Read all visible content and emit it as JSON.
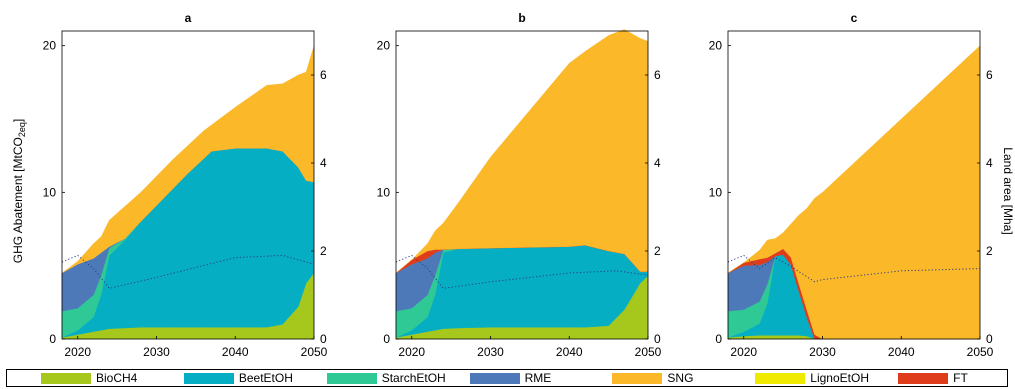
{
  "y_left_label": "GHG Abatement [MtCO",
  "y_left_sub": "2eq",
  "y_left_close": "]",
  "y_right_label": "Land area [Mha]",
  "colors": {
    "BioCH4": "#a6c81c",
    "BeetEtOH": "#05aec2",
    "StarchEtOH": "#2fc996",
    "RME": "#4e79b8",
    "SNG": "#fbb829",
    "LignoEtOH": "#f0ea00",
    "FT": "#de3c1a"
  },
  "legend": [
    {
      "key": "BioCH4",
      "label": "BioCH4"
    },
    {
      "key": "BeetEtOH",
      "label": "BeetEtOH"
    },
    {
      "key": "StarchEtOH",
      "label": "StarchEtOH"
    },
    {
      "key": "RME",
      "label": "RME"
    },
    {
      "key": "SNG",
      "label": "SNG"
    },
    {
      "key": "LignoEtOH",
      "label": "LignoEtOH"
    },
    {
      "key": "FT",
      "label": "FT"
    }
  ],
  "chart_data": [
    {
      "type": "area",
      "title": "a",
      "xlim": [
        2018,
        2050
      ],
      "ylim_left": [
        0,
        21
      ],
      "ylim_right": [
        0,
        7
      ],
      "xticks": [
        2020,
        2030,
        2040,
        2050
      ],
      "yticks_left": [
        0,
        10,
        20
      ],
      "yticks_right": [
        0,
        2,
        4,
        6
      ],
      "x": [
        2018,
        2020,
        2022,
        2023,
        2024,
        2026,
        2028,
        2030,
        2032,
        2034,
        2036,
        2037,
        2040,
        2044,
        2046,
        2048,
        2049,
        2050
      ],
      "series": [
        {
          "name": "BioCH4",
          "values": [
            0.1,
            0.3,
            0.5,
            0.6,
            0.7,
            0.75,
            0.8,
            0.8,
            0.8,
            0.8,
            0.8,
            0.8,
            0.8,
            0.8,
            1.0,
            2.2,
            3.8,
            4.5
          ]
        },
        {
          "name": "BeetEtOH",
          "values": [
            0.0,
            0.3,
            1.0,
            2.5,
            5.0,
            6.0,
            7.2,
            8.3,
            9.4,
            10.5,
            11.5,
            12.0,
            12.2,
            12.2,
            11.8,
            9.5,
            7.0,
            6.2
          ]
        },
        {
          "name": "StarchEtOH",
          "values": [
            1.8,
            1.5,
            1.5,
            1.3,
            0.5,
            0.1,
            0.0,
            0.0,
            0.0,
            0.0,
            0.0,
            0.0,
            0.0,
            0.0,
            0.0,
            0.0,
            0.0,
            0.0
          ]
        },
        {
          "name": "RME",
          "values": [
            2.6,
            3.0,
            2.5,
            1.5,
            0.1,
            0.0,
            0.0,
            0.0,
            0.0,
            0.0,
            0.0,
            0.0,
            0.0,
            0.0,
            0.0,
            0.0,
            0.0,
            0.0
          ]
        },
        {
          "name": "SNG",
          "values": [
            0.0,
            0.2,
            1.0,
            1.1,
            1.8,
            2.2,
            2.0,
            2.0,
            2.0,
            1.9,
            1.9,
            1.8,
            2.8,
            4.3,
            4.6,
            6.3,
            7.4,
            9.3
          ]
        }
      ],
      "land_area": {
        "x": [
          2018,
          2020,
          2022,
          2024,
          2030,
          2040,
          2046,
          2050
        ],
        "values": [
          1.75,
          1.9,
          1.6,
          1.15,
          1.4,
          1.85,
          1.9,
          1.7
        ]
      }
    },
    {
      "type": "area",
      "title": "b",
      "xlim": [
        2018,
        2050
      ],
      "ylim_left": [
        0,
        21
      ],
      "ylim_right": [
        0,
        7
      ],
      "xticks": [
        2020,
        2030,
        2040,
        2050
      ],
      "yticks_left": [
        0,
        10,
        20
      ],
      "yticks_right": [
        0,
        2,
        4,
        6
      ],
      "x": [
        2018,
        2020,
        2022,
        2023,
        2024,
        2026,
        2030,
        2040,
        2042,
        2045,
        2047,
        2049,
        2050
      ],
      "series": [
        {
          "name": "BioCH4",
          "values": [
            0.1,
            0.3,
            0.5,
            0.6,
            0.7,
            0.75,
            0.8,
            0.8,
            0.8,
            0.9,
            2.0,
            3.8,
            4.3
          ]
        },
        {
          "name": "BeetEtOH",
          "values": [
            0.0,
            0.3,
            1.0,
            2.5,
            5.2,
            5.4,
            5.4,
            5.5,
            5.6,
            5.1,
            3.8,
            0.8,
            0.3
          ]
        },
        {
          "name": "StarchEtOH",
          "values": [
            1.8,
            1.5,
            1.5,
            1.3,
            0.2,
            0.0,
            0.0,
            0.0,
            0.0,
            0.0,
            0.0,
            0.0,
            0.0
          ]
        },
        {
          "name": "RME",
          "values": [
            2.6,
            3.0,
            2.5,
            1.5,
            0.0,
            0.0,
            0.0,
            0.0,
            0.0,
            0.0,
            0.0,
            0.0,
            0.0
          ]
        },
        {
          "name": "FT",
          "values": [
            0.0,
            0.3,
            0.5,
            0.2,
            0.0,
            0.0,
            0.0,
            0.0,
            0.0,
            0.0,
            0.0,
            0.0,
            0.0
          ]
        },
        {
          "name": "SNG",
          "values": [
            0.0,
            0.0,
            0.5,
            1.3,
            1.8,
            3.2,
            6.2,
            12.5,
            13.2,
            14.7,
            15.3,
            15.9,
            15.7
          ]
        }
      ],
      "land_area": {
        "x": [
          2018,
          2020,
          2022,
          2024,
          2030,
          2040,
          2046,
          2050
        ],
        "values": [
          1.75,
          1.9,
          1.6,
          1.15,
          1.3,
          1.5,
          1.55,
          1.45
        ]
      }
    },
    {
      "type": "area",
      "title": "c",
      "xlim": [
        2018,
        2050
      ],
      "ylim_left": [
        0,
        21
      ],
      "ylim_right": [
        0,
        7
      ],
      "xticks": [
        2020,
        2030,
        2040,
        2050
      ],
      "yticks_left": [
        0,
        10,
        20
      ],
      "yticks_right": [
        0,
        2,
        4,
        6
      ],
      "x": [
        2018,
        2020,
        2022,
        2023,
        2024,
        2025,
        2026,
        2027,
        2028,
        2029,
        2030,
        2040,
        2050
      ],
      "series": [
        {
          "name": "BioCH4",
          "values": [
            0.1,
            0.2,
            0.25,
            0.25,
            0.25,
            0.25,
            0.25,
            0.25,
            0.2,
            0.0,
            0.0,
            0.0,
            0.0
          ]
        },
        {
          "name": "BeetEtOH",
          "values": [
            0.0,
            0.3,
            0.8,
            2.2,
            5.4,
            5.5,
            4.8,
            3.0,
            1.3,
            0.0,
            0.0,
            0.0,
            0.0
          ]
        },
        {
          "name": "StarchEtOH",
          "values": [
            1.8,
            1.5,
            1.5,
            1.3,
            0.0,
            0.0,
            0.0,
            0.0,
            0.0,
            0.0,
            0.0,
            0.0,
            0.0
          ]
        },
        {
          "name": "RME",
          "values": [
            2.6,
            3.0,
            2.5,
            1.5,
            0.0,
            0.0,
            0.0,
            0.0,
            0.0,
            0.0,
            0.0,
            0.0,
            0.0
          ]
        },
        {
          "name": "FT",
          "values": [
            0.0,
            0.2,
            0.4,
            0.3,
            0.2,
            0.4,
            0.5,
            0.5,
            0.5,
            0.3,
            0.0,
            0.0,
            0.0
          ]
        },
        {
          "name": "SNG",
          "values": [
            0.0,
            0.0,
            0.6,
            1.2,
            1.0,
            1.1,
            2.3,
            4.7,
            6.9,
            9.3,
            10.0,
            15.0,
            20.0
          ]
        }
      ],
      "land_area": {
        "x": [
          2018,
          2020,
          2022,
          2024,
          2026,
          2029,
          2030,
          2040,
          2050
        ],
        "values": [
          1.75,
          1.9,
          1.6,
          1.85,
          1.65,
          1.3,
          1.35,
          1.55,
          1.6
        ]
      }
    }
  ]
}
